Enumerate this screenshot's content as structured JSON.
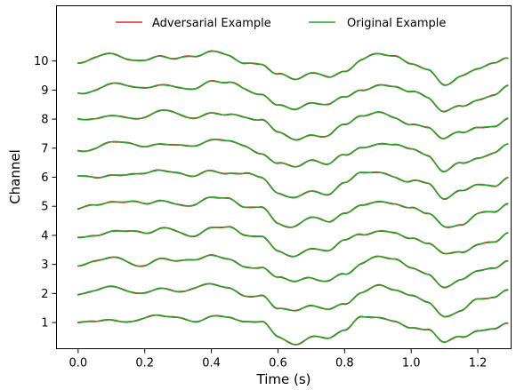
{
  "chart_data": {
    "type": "line",
    "title": "",
    "xlabel": "Time (s)",
    "ylabel": "Channel",
    "xlim": [
      -0.065,
      1.3
    ],
    "ylim": [
      0.1,
      11.9
    ],
    "x_ticks": [
      0.0,
      0.2,
      0.4,
      0.6,
      0.8,
      1.0,
      1.2
    ],
    "x_tick_labels": [
      "0.0",
      "0.2",
      "0.4",
      "0.6",
      "0.8",
      "1.0",
      "1.2"
    ],
    "y_ticks": [
      1,
      2,
      3,
      4,
      5,
      6,
      7,
      8,
      9,
      10
    ],
    "y_tick_labels": [
      "1",
      "2",
      "3",
      "4",
      "5",
      "6",
      "7",
      "8",
      "9",
      "10"
    ],
    "grid": false,
    "legend": {
      "placement": "top-center",
      "entries": [
        {
          "label": "Adversarial Example",
          "color": "#d62728"
        },
        {
          "label": "Original Example",
          "color": "#2ca02c"
        }
      ]
    },
    "series": [
      {
        "name": "Adversarial Example",
        "color": "#d62728"
      },
      {
        "name": "Original Example",
        "color": "#2ca02c"
      }
    ],
    "x": [
      0.0,
      0.05,
      0.1,
      0.15,
      0.2,
      0.25,
      0.3,
      0.35,
      0.4,
      0.45,
      0.5,
      0.55,
      0.6,
      0.65,
      0.7,
      0.75,
      0.8,
      0.85,
      0.9,
      0.95,
      1.0,
      1.05,
      1.1,
      1.15,
      1.2,
      1.25,
      1.29
    ],
    "channels": [
      {
        "channel": 1,
        "values": [
          1.0,
          1.05,
          1.15,
          1.1,
          1.05,
          1.2,
          1.15,
          1.1,
          1.25,
          1.2,
          1.0,
          0.95,
          0.5,
          0.35,
          0.55,
          0.4,
          0.75,
          1.1,
          1.2,
          1.1,
          0.9,
          0.7,
          0.25,
          0.5,
          0.75,
          0.8,
          1.05
        ]
      },
      {
        "channel": 2,
        "values": [
          2.0,
          2.05,
          2.15,
          2.1,
          2.05,
          2.2,
          2.15,
          2.1,
          2.25,
          2.2,
          2.0,
          1.95,
          1.5,
          1.35,
          1.55,
          1.4,
          1.75,
          2.1,
          2.2,
          2.1,
          1.9,
          1.7,
          1.25,
          1.5,
          1.75,
          1.8,
          2.05
        ]
      },
      {
        "channel": 3,
        "values": [
          3.0,
          3.05,
          3.15,
          3.1,
          3.05,
          3.2,
          3.15,
          3.1,
          3.25,
          3.2,
          3.0,
          2.95,
          2.5,
          2.35,
          2.55,
          2.4,
          2.75,
          3.1,
          3.2,
          3.1,
          2.9,
          2.7,
          2.25,
          2.5,
          2.75,
          2.8,
          3.05
        ]
      },
      {
        "channel": 4,
        "values": [
          4.0,
          4.05,
          4.15,
          4.1,
          4.05,
          4.2,
          4.15,
          4.1,
          4.25,
          4.2,
          4.0,
          3.95,
          3.5,
          3.35,
          3.55,
          3.4,
          3.75,
          4.1,
          4.2,
          4.1,
          3.9,
          3.7,
          3.25,
          3.5,
          3.75,
          3.8,
          4.05
        ]
      },
      {
        "channel": 5,
        "values": [
          5.0,
          5.05,
          5.15,
          5.1,
          5.05,
          5.2,
          5.15,
          5.1,
          5.25,
          5.2,
          5.0,
          4.95,
          4.5,
          4.35,
          4.55,
          4.4,
          4.75,
          5.1,
          5.2,
          5.1,
          4.9,
          4.7,
          4.25,
          4.5,
          4.75,
          4.8,
          5.05
        ]
      },
      {
        "channel": 6,
        "values": [
          6.0,
          6.05,
          6.15,
          6.1,
          6.05,
          6.2,
          6.15,
          6.1,
          6.25,
          6.2,
          6.0,
          5.95,
          5.5,
          5.35,
          5.55,
          5.4,
          5.75,
          6.1,
          6.2,
          6.1,
          5.9,
          5.7,
          5.25,
          5.5,
          5.75,
          5.8,
          6.05
        ]
      },
      {
        "channel": 7,
        "values": [
          7.0,
          7.05,
          7.15,
          7.1,
          7.05,
          7.2,
          7.15,
          7.1,
          7.25,
          7.2,
          7.0,
          6.95,
          6.5,
          6.35,
          6.55,
          6.4,
          6.75,
          7.1,
          7.2,
          7.1,
          6.9,
          6.7,
          6.25,
          6.5,
          6.75,
          6.8,
          7.05
        ]
      },
      {
        "channel": 8,
        "values": [
          8.0,
          8.05,
          8.15,
          8.1,
          8.05,
          8.2,
          8.15,
          8.1,
          8.25,
          8.2,
          8.0,
          7.95,
          7.5,
          7.35,
          7.55,
          7.4,
          7.75,
          8.1,
          8.2,
          8.1,
          7.9,
          7.7,
          7.25,
          7.5,
          7.75,
          7.8,
          8.05
        ]
      },
      {
        "channel": 9,
        "values": [
          9.0,
          9.05,
          9.15,
          9.1,
          9.05,
          9.2,
          9.15,
          9.1,
          9.25,
          9.2,
          9.0,
          8.95,
          8.5,
          8.35,
          8.55,
          8.4,
          8.75,
          9.1,
          9.2,
          9.1,
          8.9,
          8.7,
          8.25,
          8.5,
          8.75,
          8.8,
          9.05
        ]
      },
      {
        "channel": 10,
        "values": [
          10.0,
          10.05,
          10.15,
          10.1,
          10.05,
          10.2,
          10.15,
          10.1,
          10.25,
          10.2,
          10.0,
          9.95,
          9.5,
          9.35,
          9.55,
          9.4,
          9.75,
          10.1,
          10.2,
          10.1,
          9.9,
          9.7,
          9.25,
          9.5,
          9.75,
          9.8,
          10.05
        ]
      }
    ]
  }
}
